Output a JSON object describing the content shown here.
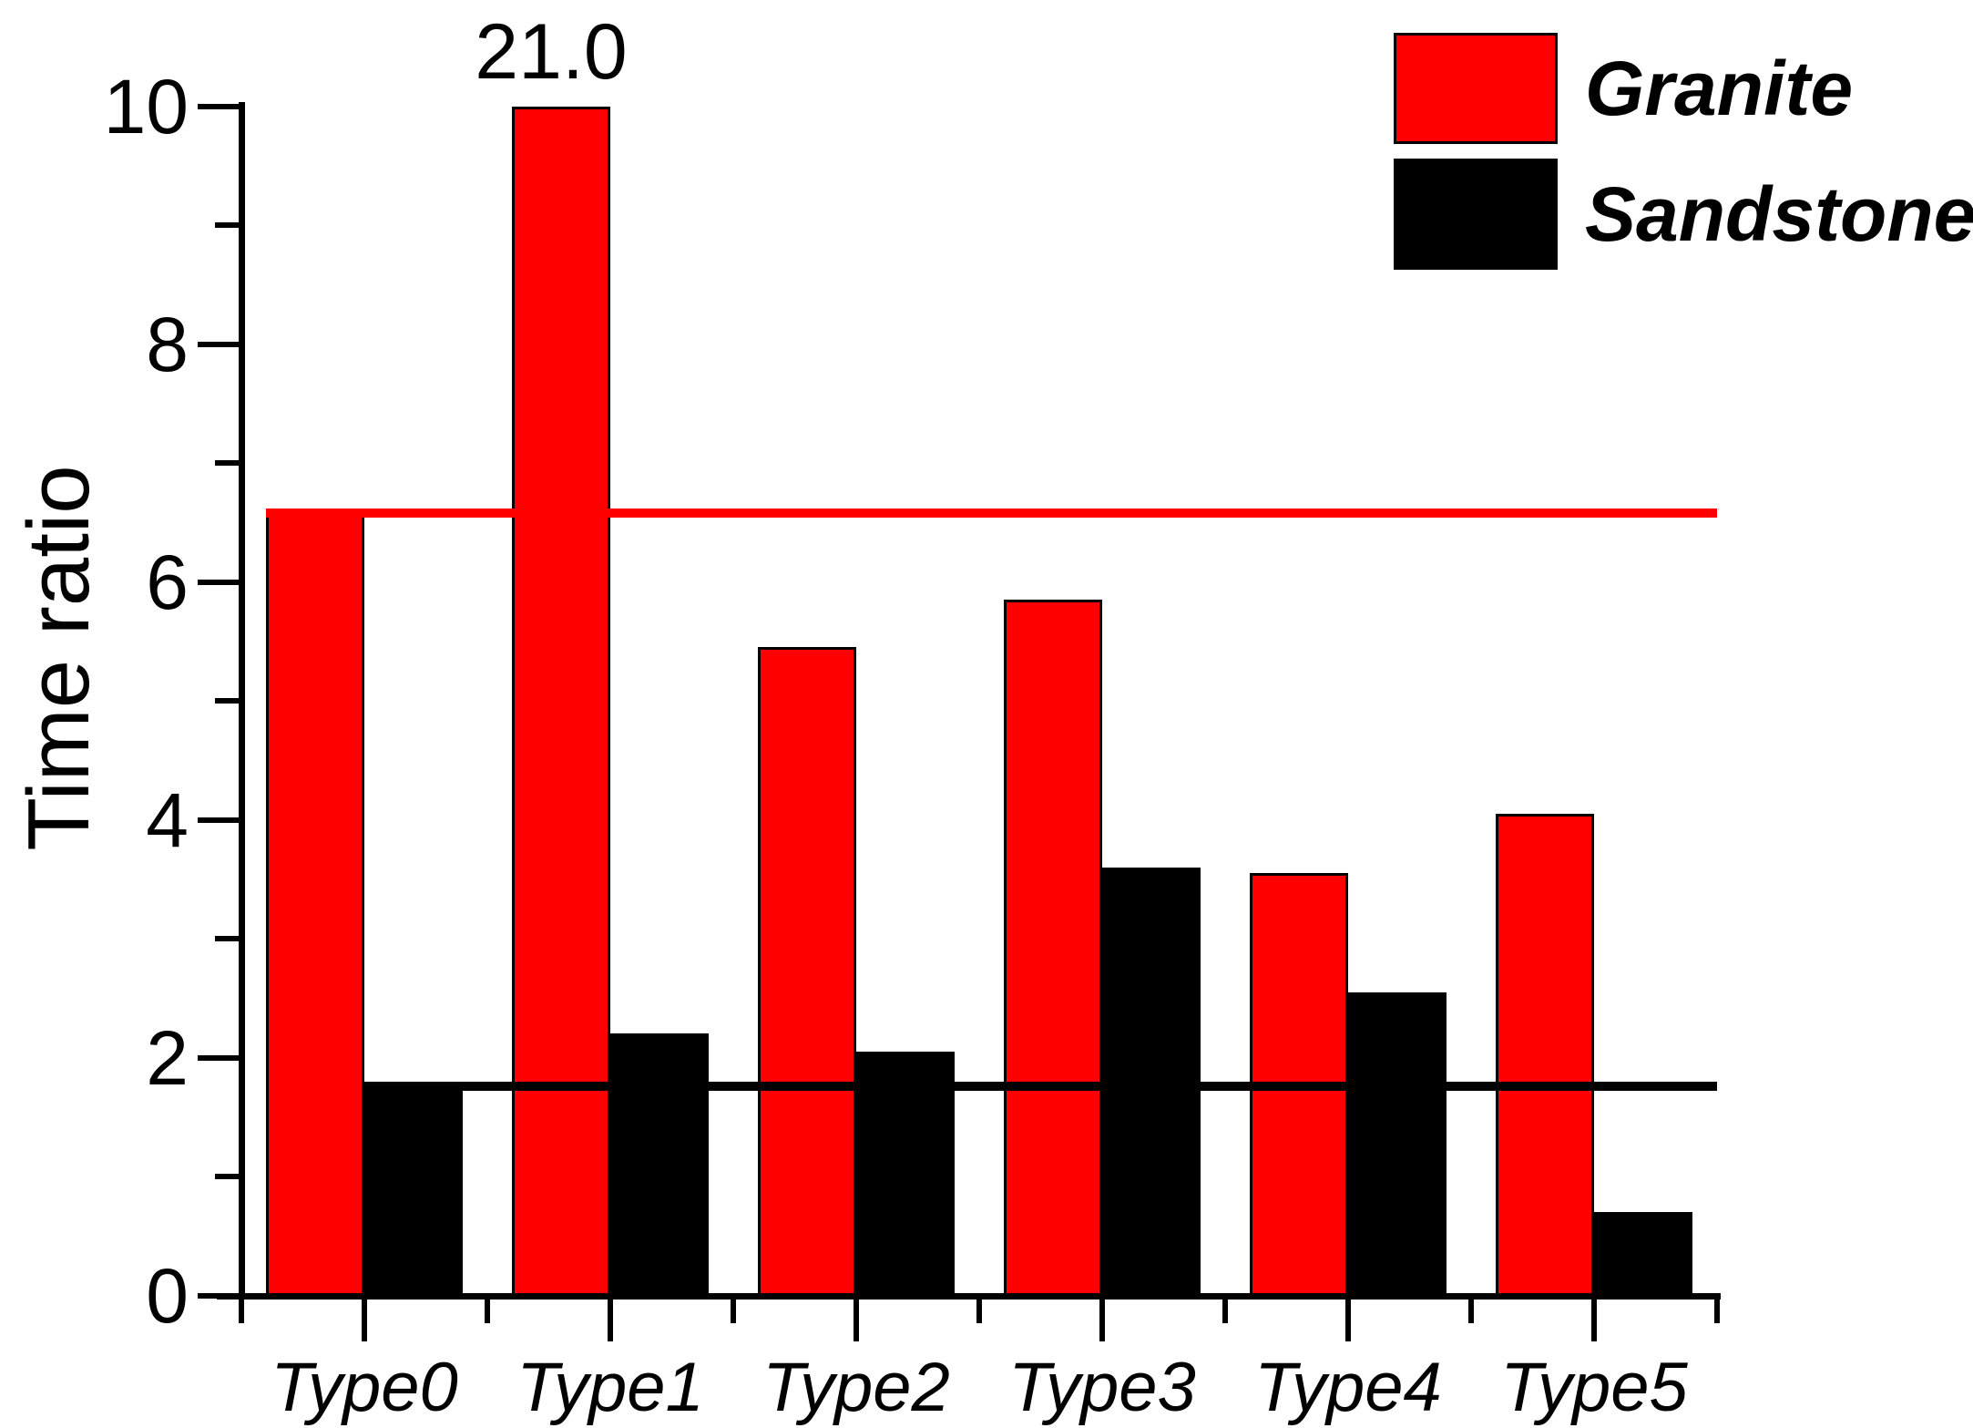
{
  "chart_data": {
    "type": "bar",
    "title": "",
    "categories": [
      "Type0",
      "Type1",
      "Type2",
      "Type3",
      "Type4",
      "Type5"
    ],
    "series": [
      {
        "name": "Granite",
        "color": "#ff0000",
        "values": [
          6.6,
          21.0,
          5.45,
          5.85,
          3.55,
          4.05
        ]
      },
      {
        "name": "Sandstone",
        "color": "#000000",
        "values": [
          1.8,
          2.2,
          2.05,
          3.6,
          2.55,
          0.7
        ]
      }
    ],
    "xlabel": "",
    "ylabel": "Time ratio",
    "ylim": [
      0,
      10
    ],
    "yticks_major": [
      0,
      2,
      4,
      6,
      8,
      10
    ],
    "yticks_minor": [
      1,
      3,
      5,
      7,
      9
    ],
    "grid": false,
    "bar_outline_color": "#000000",
    "legend_position": "top-right",
    "annotations": [
      {
        "text": "21.0",
        "series": "Granite",
        "category": "Type1"
      }
    ],
    "reference_lines": [
      {
        "color": "#ff0000",
        "value": 6.58
      },
      {
        "color": "#000000",
        "value": 1.76
      }
    ]
  }
}
